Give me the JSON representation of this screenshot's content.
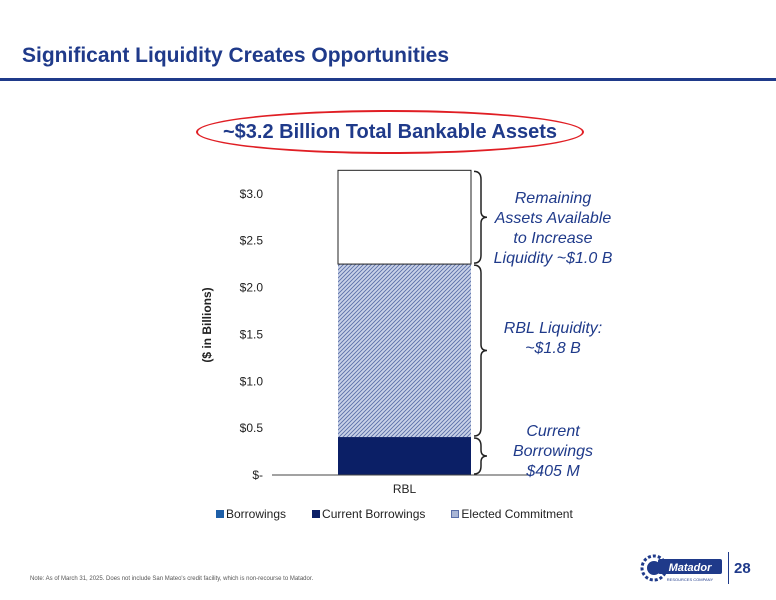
{
  "slide": {
    "title": "Significant Liquidity Creates Opportunities",
    "headline": "~$3.2 Billion Total Bankable Assets",
    "page_number": "28",
    "footnote": "Note: As of March 31, 2025. Does not include San Mateo's credit facility, which is non-recourse to Matador.",
    "logo_text": "Matador",
    "logo_subtext": "RESOURCES COMPANY"
  },
  "colors": {
    "title": "#1f3a8a",
    "headline_oval": "#e01e24",
    "current_borrowings": "#0b1f66",
    "elected_commitment": "#a9b6d6",
    "borrowings_legend": "#1e5fa8",
    "remaining": "#ffffff"
  },
  "chart_data": {
    "type": "bar",
    "stacked": true,
    "categories": [
      "RBL"
    ],
    "ylabel": "($ in Billions)",
    "ylim": [
      0,
      3.2
    ],
    "yticks": [
      0,
      0.5,
      1.0,
      1.5,
      2.0,
      2.5,
      3.0
    ],
    "ytick_labels": [
      "$-",
      "$0.5",
      "$1.0",
      "$1.5",
      "$2.0",
      "$2.5",
      "$3.0"
    ],
    "series": [
      {
        "name": "Current Borrowings",
        "values": [
          0.405
        ],
        "color": "#0b1f66",
        "pattern": "solid"
      },
      {
        "name": "Elected Commitment",
        "values": [
          1.845
        ],
        "color": "#a9b6d6",
        "pattern": "hatch"
      },
      {
        "values": [
          1.0
        ],
        "color": "#ffffff",
        "pattern": "outline"
      }
    ],
    "legend": {
      "placement": "bottom",
      "entries": [
        "Borrowings",
        "Current Borrowings",
        "Elected Commitment"
      ]
    },
    "annotations": [
      {
        "text": "Remaining Assets Available to Increase Liquidity ~$1.0 B",
        "range": [
          2.25,
          3.25
        ]
      },
      {
        "text": "RBL Liquidity: ~$1.8 B",
        "range": [
          0.405,
          2.25
        ]
      },
      {
        "text": "Current Borrowings $405 M",
        "range": [
          0,
          0.405
        ]
      }
    ]
  }
}
